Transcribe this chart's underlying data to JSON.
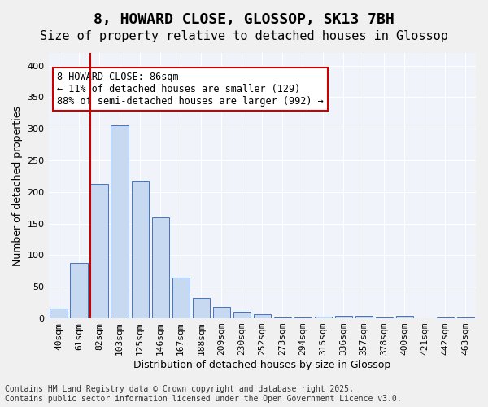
{
  "title": "8, HOWARD CLOSE, GLOSSOP, SK13 7BH",
  "subtitle": "Size of property relative to detached houses in Glossop",
  "xlabel": "Distribution of detached houses by size in Glossop",
  "ylabel": "Number of detached properties",
  "categories": [
    "40sqm",
    "61sqm",
    "82sqm",
    "103sqm",
    "125sqm",
    "146sqm",
    "167sqm",
    "188sqm",
    "209sqm",
    "230sqm",
    "252sqm",
    "273sqm",
    "294sqm",
    "315sqm",
    "336sqm",
    "357sqm",
    "378sqm",
    "400sqm",
    "421sqm",
    "442sqm",
    "463sqm"
  ],
  "values": [
    15,
    88,
    212,
    305,
    218,
    160,
    65,
    32,
    18,
    10,
    6,
    2,
    1,
    3,
    4,
    4,
    1,
    4,
    0,
    1,
    2
  ],
  "bar_color": "#c6d9f0",
  "bar_edge_color": "#4472c4",
  "vline_x_index": 2,
  "vline_color": "#cc0000",
  "annotation_text": "8 HOWARD CLOSE: 86sqm\n← 11% of detached houses are smaller (129)\n88% of semi-detached houses are larger (992) →",
  "annotation_box_color": "#ffffff",
  "annotation_box_edge": "#cc0000",
  "ylim": [
    0,
    420
  ],
  "yticks": [
    0,
    50,
    100,
    150,
    200,
    250,
    300,
    350,
    400
  ],
  "footer_text": "Contains HM Land Registry data © Crown copyright and database right 2025.\nContains public sector information licensed under the Open Government Licence v3.0.",
  "bg_color": "#f0f4fa",
  "grid_color": "#ffffff",
  "title_fontsize": 13,
  "subtitle_fontsize": 11,
  "axis_label_fontsize": 9,
  "tick_fontsize": 8,
  "annotation_fontsize": 8.5,
  "footer_fontsize": 7
}
